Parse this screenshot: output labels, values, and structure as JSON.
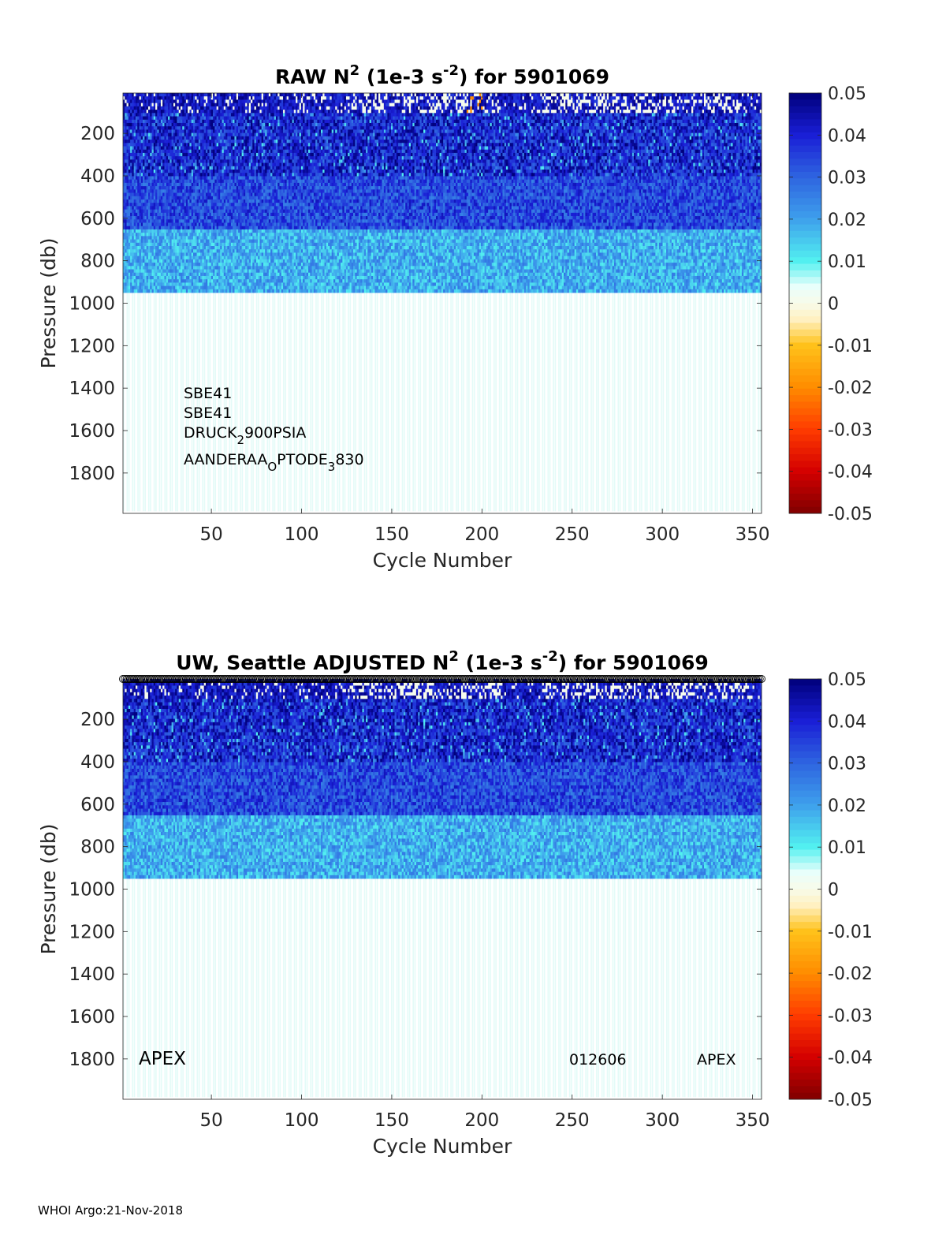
{
  "colors": {
    "axis": "#262626",
    "background": "#ffffff",
    "text": "#000000",
    "colormap_stops": [
      [
        -0.05,
        "#800000"
      ],
      [
        -0.04,
        "#d40000"
      ],
      [
        -0.03,
        "#ff3c00"
      ],
      [
        -0.02,
        "#ff8c00"
      ],
      [
        -0.01,
        "#ffc21a"
      ],
      [
        -0.004,
        "#fff0c0"
      ],
      [
        0.0,
        "#f8fbea"
      ],
      [
        0.004,
        "#e8fffb"
      ],
      [
        0.01,
        "#52f0f0"
      ],
      [
        0.02,
        "#3ea0ec"
      ],
      [
        0.03,
        "#2e64e0"
      ],
      [
        0.04,
        "#1a1ed6"
      ],
      [
        0.05,
        "#00007a"
      ]
    ]
  },
  "chart_data": [
    {
      "type": "heatmap",
      "id": "raw",
      "title_parts": {
        "prefix": "RAW N",
        "sup1": "2",
        "mid": " (1e-3 s",
        "sup2": "-2",
        "suffix": ") for 5901069"
      },
      "xlabel": "Cycle Number",
      "ylabel": "Pressure (db)",
      "xlim": [
        1,
        355
      ],
      "ylim": [
        1990,
        10
      ],
      "xticks": [
        "50",
        "100",
        "150",
        "200",
        "250",
        "300",
        "350"
      ],
      "yticks": [
        "200",
        "400",
        "600",
        "800",
        "1000",
        "1200",
        "1400",
        "1600",
        "1800"
      ],
      "clim": [
        -0.05,
        0.05
      ],
      "colorbar_ticks": [
        "0.05",
        "0.04",
        "0.03",
        "0.02",
        "0.01",
        "0",
        "-0.01",
        "-0.02",
        "-0.03",
        "-0.04",
        "-0.05"
      ],
      "annotation_lines": [
        {
          "base": "SBE41"
        },
        {
          "base": "SBE41"
        },
        {
          "base": "DRUCK",
          "sub": "2",
          "rest": "900PSIA"
        },
        {
          "base": "AANDERAA",
          "sub": "O",
          "rest": "PTODE",
          "sub2": "3",
          "rest2": "830"
        }
      ],
      "profile_depth_db": 950,
      "n_cycles": 355,
      "data_summary": {
        "surface_0_100db": "mixed, includes near-zero and slightly negative values near cycles 140-210 and 240-350",
        "100_400db": "0.03 to 0.05",
        "400_650db": "0.025 to 0.045",
        "650_950db": "0.01 to 0.025",
        "below_950db": "no data"
      }
    },
    {
      "type": "heatmap",
      "id": "adjusted",
      "title_parts": {
        "prefix": "UW, Seattle  ADJUSTED N",
        "sup1": "2",
        "mid": " (1e-3 s",
        "sup2": "-2",
        "suffix": ") for 5901069"
      },
      "xlabel": "Cycle Number",
      "ylabel": "Pressure (db)",
      "xlim": [
        1,
        355
      ],
      "ylim": [
        1990,
        10
      ],
      "xticks": [
        "50",
        "100",
        "150",
        "200",
        "250",
        "300",
        "350"
      ],
      "yticks": [
        "200",
        "400",
        "600",
        "800",
        "1000",
        "1200",
        "1400",
        "1600",
        "1800"
      ],
      "clim": [
        -0.05,
        0.05
      ],
      "colorbar_ticks": [
        "0.05",
        "0.04",
        "0.03",
        "0.02",
        "0.01",
        "0",
        "-0.01",
        "-0.02",
        "-0.03",
        "-0.04",
        "-0.05"
      ],
      "qc_marker_row": true,
      "labels": {
        "left": "APEX",
        "middle": "012606",
        "right": "APEX"
      },
      "profile_depth_db": 950,
      "n_cycles": 355
    }
  ],
  "footer": "WHOI Argo:21-Nov-2018"
}
